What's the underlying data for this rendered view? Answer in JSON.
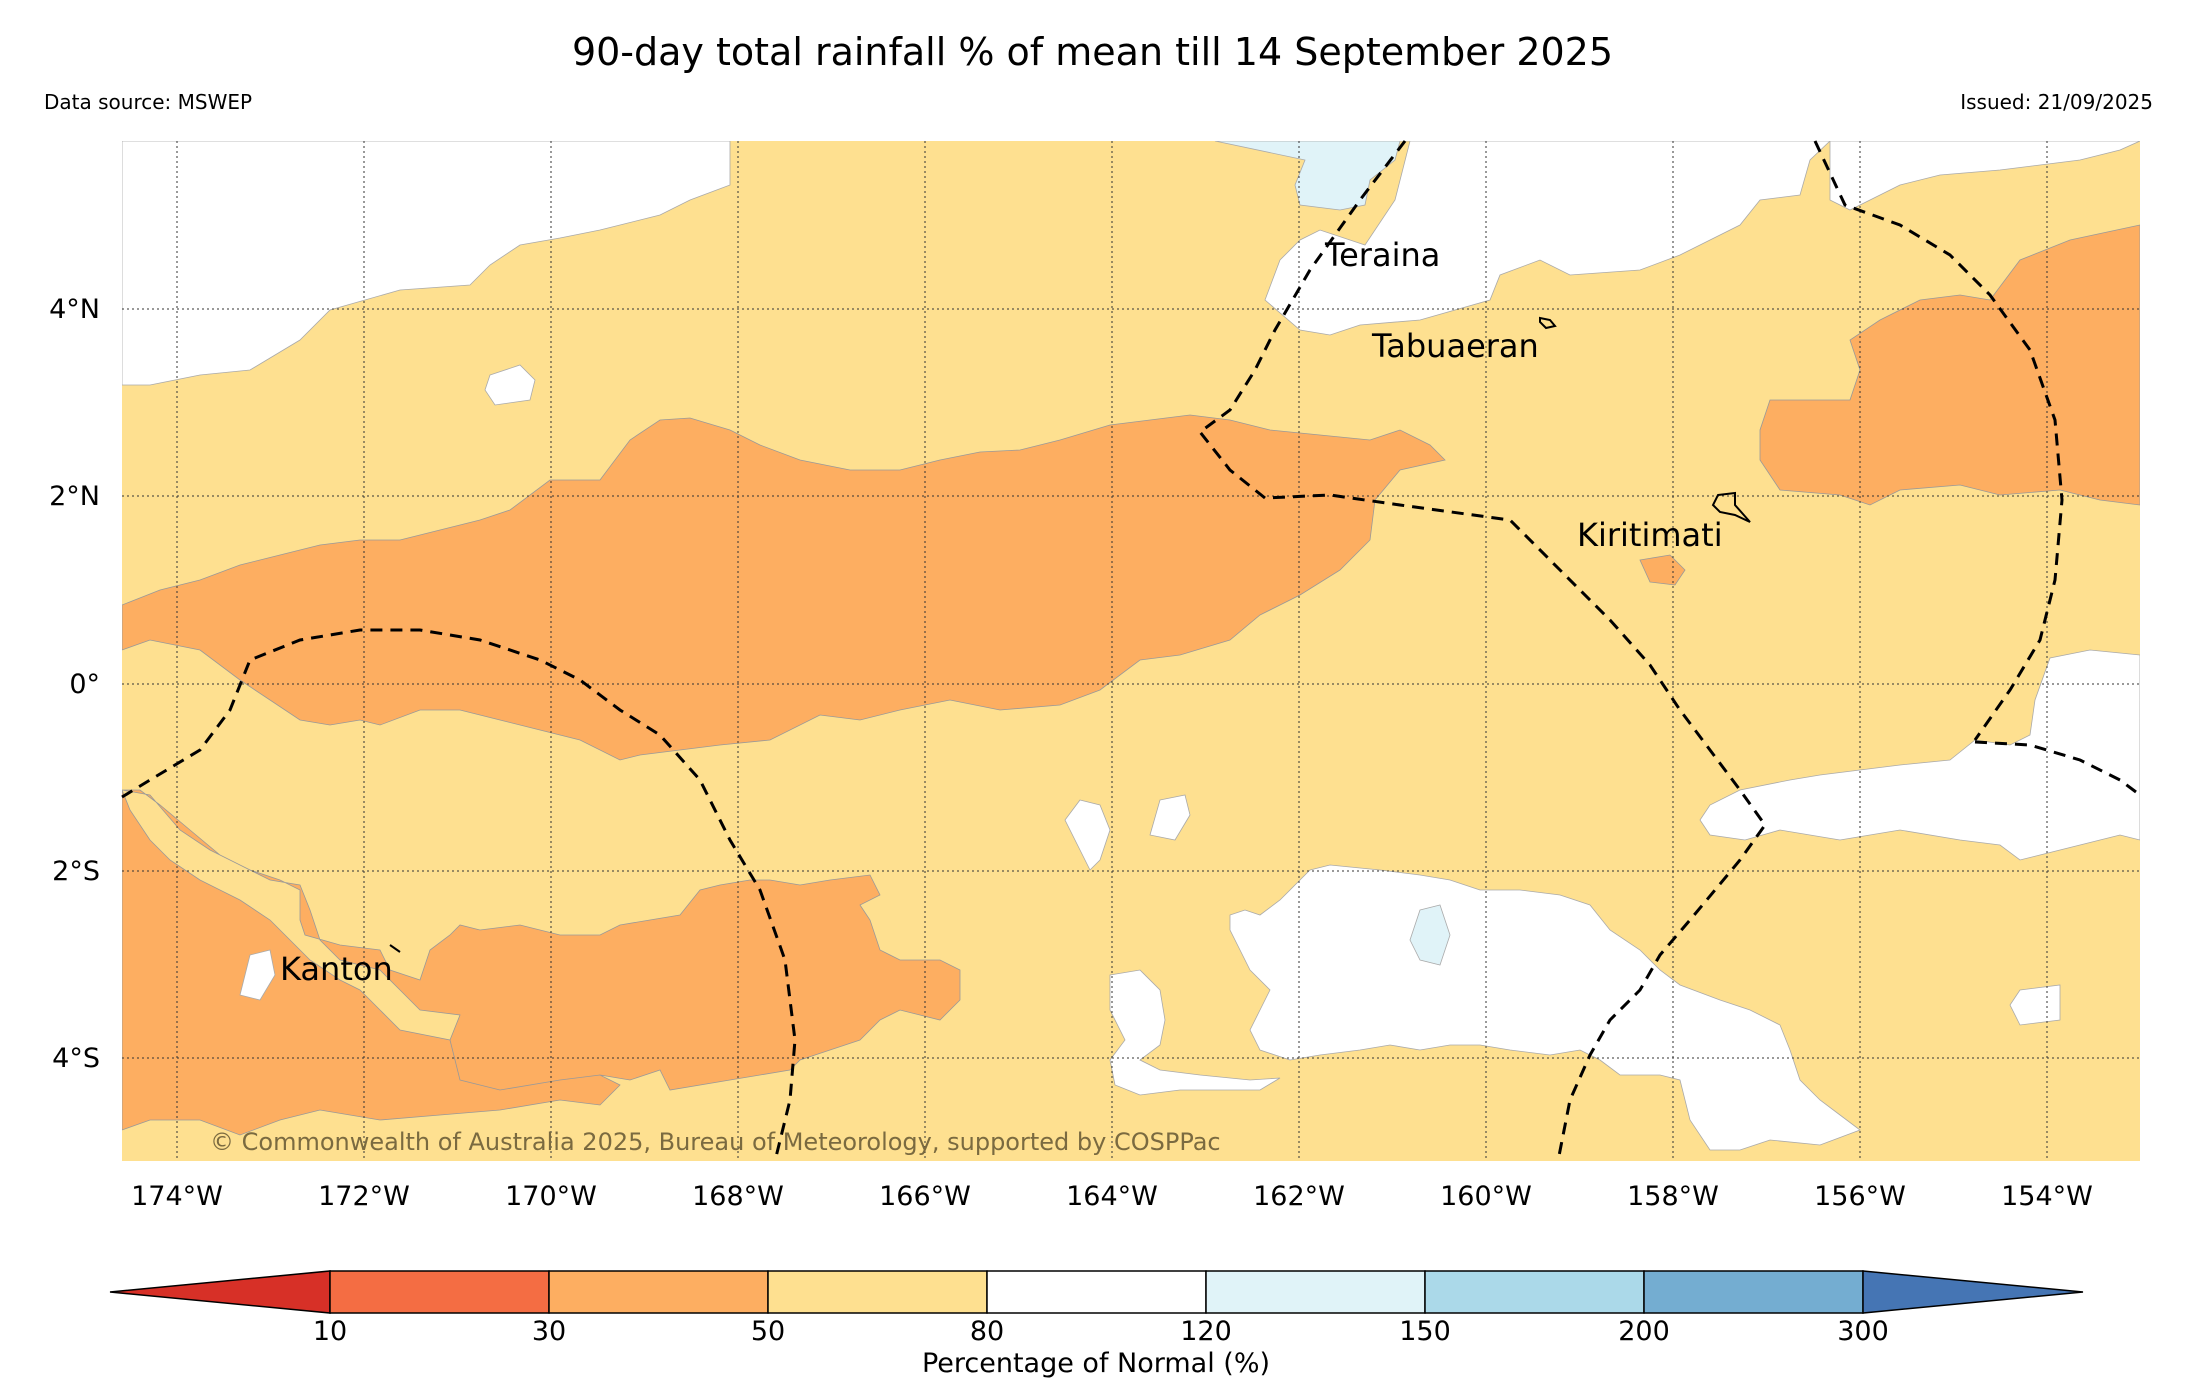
{
  "title": "90-day total rainfall % of mean till 14 September 2025",
  "data_source": "Data source: MSWEP",
  "issued": "Issued: 21/09/2025",
  "copyright": "© Commonwealth of Australia 2025, Bureau of Meteorology, supported by COSPPac",
  "map": {
    "lon_range": [
      -174.6,
      -153.0
    ],
    "lat_range": [
      -5.1,
      5.8
    ],
    "lon_ticks": [
      "174°W",
      "172°W",
      "170°W",
      "168°W",
      "166°W",
      "164°W",
      "162°W",
      "160°W",
      "158°W",
      "156°W",
      "154°W"
    ],
    "lat_ticks": [
      "4°N",
      "2°N",
      "0°",
      "2°S",
      "4°S"
    ],
    "places": [
      {
        "name": "Teraina"
      },
      {
        "name": "Tabuaeran"
      },
      {
        "name": "Kiritimati"
      },
      {
        "name": "Kanton"
      }
    ]
  },
  "legend": {
    "title": "Percentage of Normal (%)",
    "ticks": [
      "10",
      "30",
      "50",
      "80",
      "120",
      "150",
      "200",
      "300"
    ],
    "colors": [
      "#d73027",
      "#f46d43",
      "#fdae61",
      "#fee090",
      "#ffffff",
      "#e0f3f8",
      "#abd9e9",
      "#74add1",
      "#4575b4"
    ]
  },
  "colors": {
    "below_50": "#fdae61",
    "50_80": "#fee090",
    "normal": "#ffffff",
    "120_150": "#e0f3f8"
  }
}
